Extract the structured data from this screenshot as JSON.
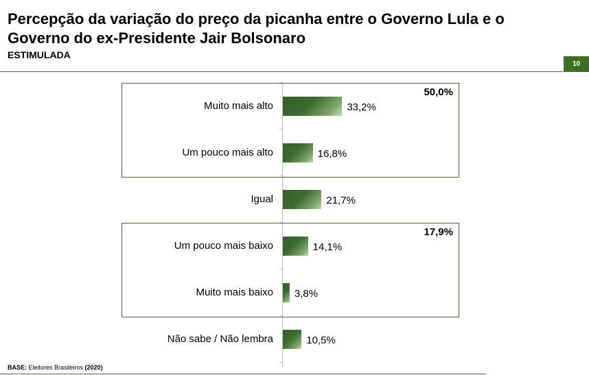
{
  "header": {
    "title": "Percepção da variação do preço da picanha entre o Governo Lula e o Governo do ex-Presidente Jair Bolsonaro",
    "subtitle": "ESTIMULADA",
    "page_number": "10"
  },
  "groups": [
    {
      "total_label": "50,0%",
      "first": 0,
      "last": 1
    },
    {
      "total_label": "17,9%",
      "first": 3,
      "last": 4
    }
  ],
  "footer": {
    "base_label": "BASE:",
    "base_text": " Eleitores Brasileiros ",
    "base_year": "(2020)"
  },
  "colors": {
    "accent": "#3c6e24",
    "bar_dark": "#35602a",
    "bar_light": "#c4d8b6"
  },
  "chart_data": {
    "type": "bar",
    "orientation": "horizontal",
    "categories": [
      "Muito mais alto",
      "Um pouco mais alto",
      "Igual",
      "Um pouco mais baixo",
      "Muito mais baixo",
      "Não sabe / Não lembra"
    ],
    "values": [
      33.2,
      16.8,
      21.7,
      14.1,
      3.8,
      10.5
    ],
    "value_labels": [
      "33,2%",
      "16,8%",
      "21,7%",
      "14,1%",
      "3,8%",
      "10,5%"
    ],
    "xlim": [
      0,
      100
    ],
    "grid": false
  }
}
